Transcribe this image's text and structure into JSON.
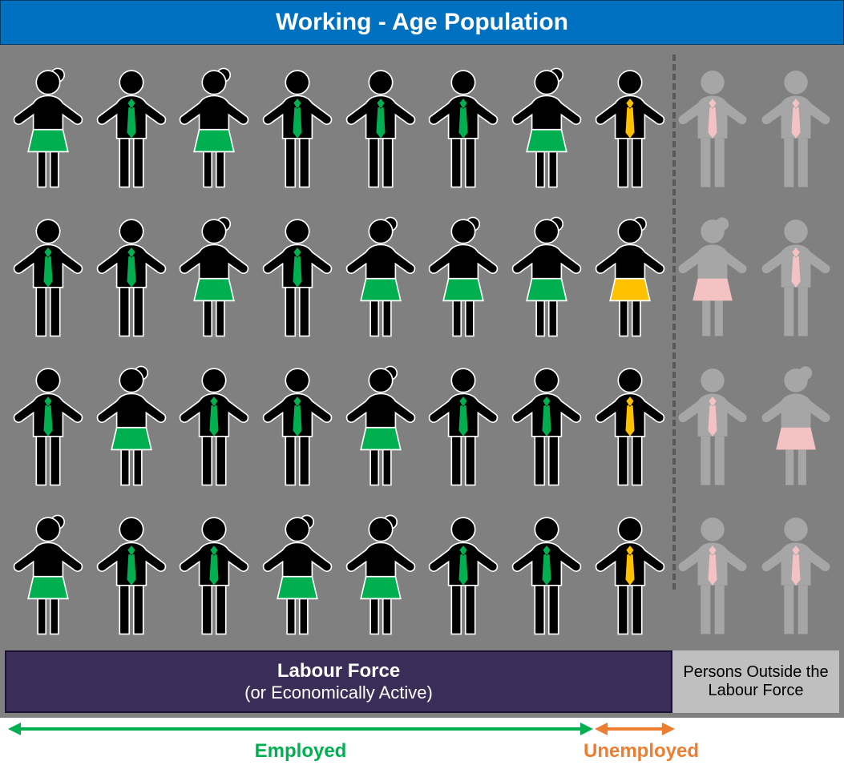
{
  "title": "Working - Age Population",
  "labour_force": {
    "title": "Labour Force",
    "subtitle": "(or Economically Active)"
  },
  "outside": "Persons Outside the Labour Force",
  "labels": {
    "employed": "Employed",
    "unemployed": "Unemployed"
  },
  "colors": {
    "background": "#808080",
    "title_bg": "#0070c0",
    "labour_force_bg": "#3a2e58",
    "outside_bg": "#bfbfbf",
    "divider": "#595959",
    "employed_accent": "#00b050",
    "unemployed_accent": "#ffc000",
    "outside_body": "#a6a6a6",
    "outside_accent": "#f4c2c2",
    "inforce_body": "#000000",
    "inforce_outline": "#ffffff",
    "employed_arrow": "#00b050",
    "unemployed_arrow": "#ed7d31"
  },
  "layout": {
    "rows": 4,
    "cols": 10,
    "labour_force_cols": 8,
    "employed_cols": 7
  },
  "people": [
    [
      {
        "sex": "f",
        "grp": "emp"
      },
      {
        "sex": "m",
        "grp": "emp"
      },
      {
        "sex": "f",
        "grp": "emp"
      },
      {
        "sex": "m",
        "grp": "emp"
      },
      {
        "sex": "m",
        "grp": "emp"
      },
      {
        "sex": "m",
        "grp": "emp"
      },
      {
        "sex": "f",
        "grp": "emp"
      },
      {
        "sex": "m",
        "grp": "une"
      },
      {
        "sex": "m",
        "grp": "out"
      },
      {
        "sex": "m",
        "grp": "out"
      }
    ],
    [
      {
        "sex": "m",
        "grp": "emp"
      },
      {
        "sex": "m",
        "grp": "emp"
      },
      {
        "sex": "f",
        "grp": "emp"
      },
      {
        "sex": "m",
        "grp": "emp"
      },
      {
        "sex": "f",
        "grp": "emp"
      },
      {
        "sex": "f",
        "grp": "emp"
      },
      {
        "sex": "f",
        "grp": "emp"
      },
      {
        "sex": "f",
        "grp": "une"
      },
      {
        "sex": "f",
        "grp": "out"
      },
      {
        "sex": "m",
        "grp": "out"
      }
    ],
    [
      {
        "sex": "m",
        "grp": "emp"
      },
      {
        "sex": "f",
        "grp": "emp"
      },
      {
        "sex": "m",
        "grp": "emp"
      },
      {
        "sex": "m",
        "grp": "emp"
      },
      {
        "sex": "f",
        "grp": "emp"
      },
      {
        "sex": "m",
        "grp": "emp"
      },
      {
        "sex": "m",
        "grp": "emp"
      },
      {
        "sex": "m",
        "grp": "une"
      },
      {
        "sex": "m",
        "grp": "out"
      },
      {
        "sex": "f",
        "grp": "out"
      }
    ],
    [
      {
        "sex": "f",
        "grp": "emp"
      },
      {
        "sex": "m",
        "grp": "emp"
      },
      {
        "sex": "m",
        "grp": "emp"
      },
      {
        "sex": "f",
        "grp": "emp"
      },
      {
        "sex": "f",
        "grp": "emp"
      },
      {
        "sex": "m",
        "grp": "emp"
      },
      {
        "sex": "m",
        "grp": "emp"
      },
      {
        "sex": "m",
        "grp": "une"
      },
      {
        "sex": "m",
        "grp": "out"
      },
      {
        "sex": "m",
        "grp": "out"
      }
    ]
  ]
}
